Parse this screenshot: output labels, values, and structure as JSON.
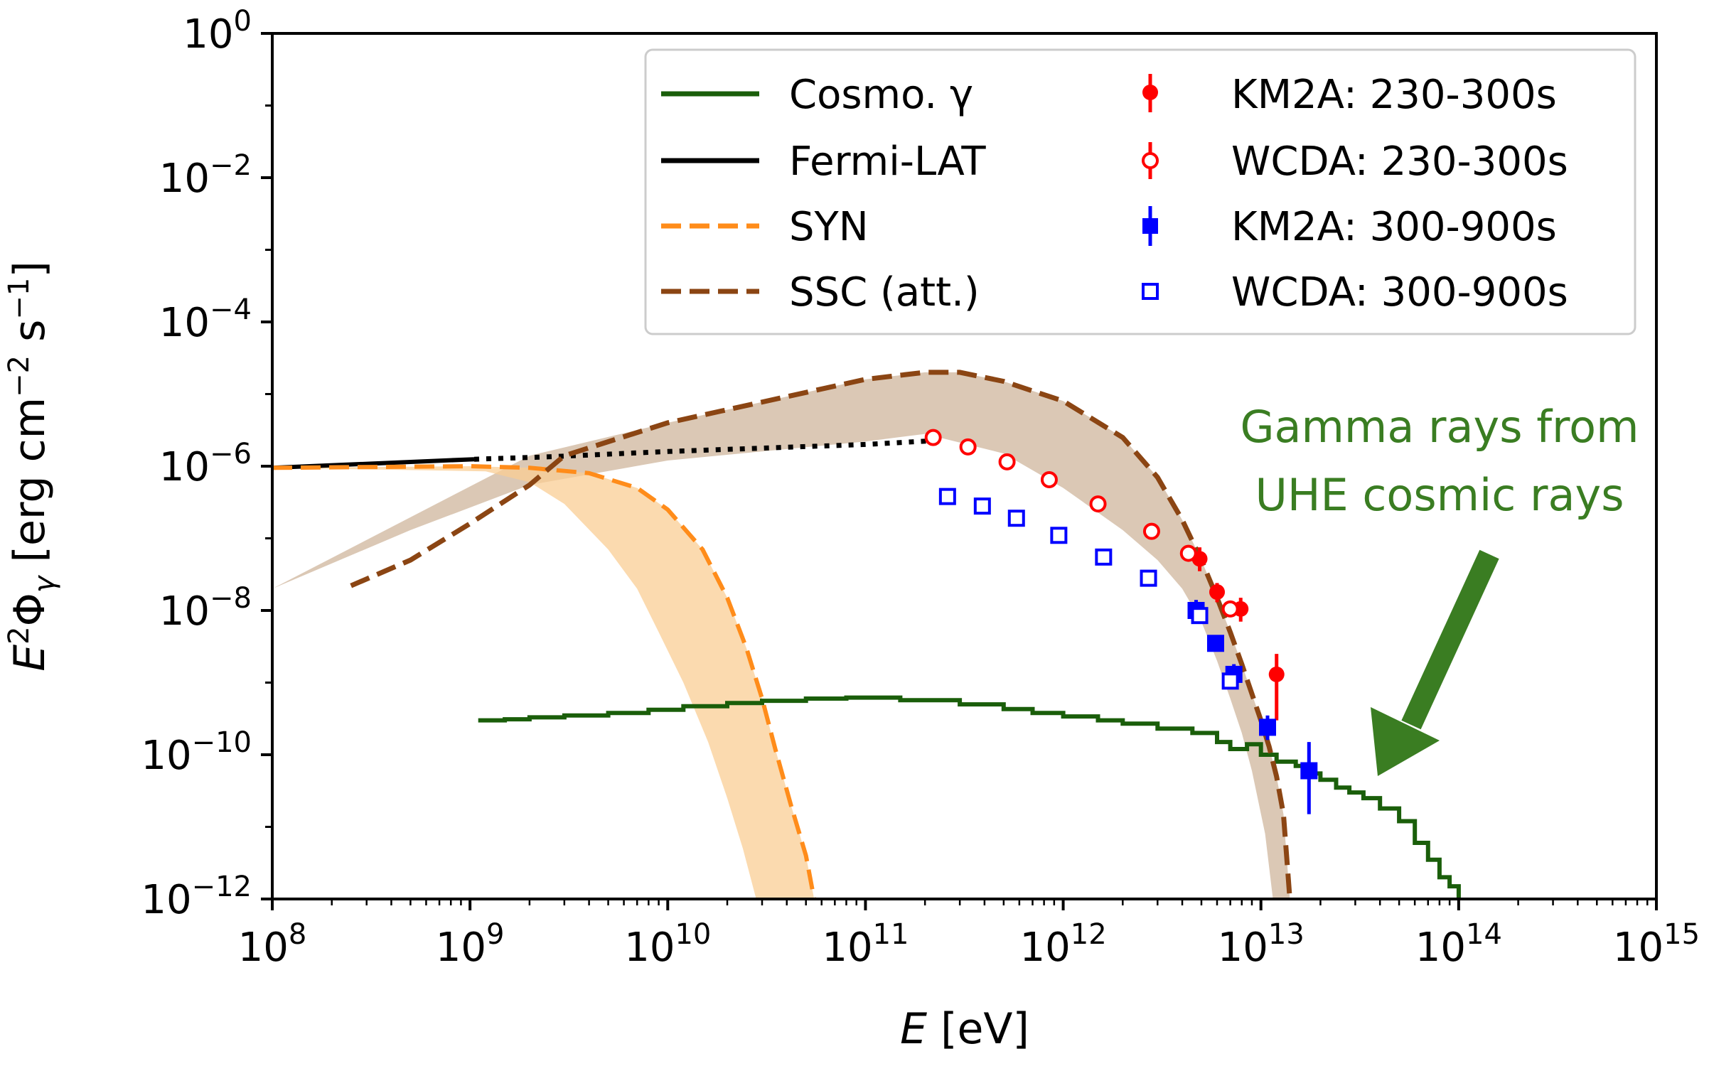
{
  "chart_data": {
    "type": "scatter",
    "x_scale": "log",
    "y_scale": "log",
    "xlim": [
      100000000.0,
      1000000000000000.0
    ],
    "ylim": [
      1e-12,
      1
    ],
    "xlabel": {
      "var": "E",
      "unit": " [eV]"
    },
    "ylabel": {
      "pre": "E",
      "sup": "2",
      "sym": "Φ",
      "sub": "γ",
      "unit": " [erg cm",
      "unit_sup1": "−2",
      "unit_mid": " s",
      "unit_sup2": "−1",
      "unit_end": "]"
    },
    "x_ticks": [
      {
        "base": "10",
        "exp": "8",
        "value": 100000000.0
      },
      {
        "base": "10",
        "exp": "9",
        "value": 1000000000.0
      },
      {
        "base": "10",
        "exp": "10",
        "value": 10000000000.0
      },
      {
        "base": "10",
        "exp": "11",
        "value": 100000000000.0
      },
      {
        "base": "10",
        "exp": "12",
        "value": 1000000000000.0
      },
      {
        "base": "10",
        "exp": "13",
        "value": 10000000000000.0
      },
      {
        "base": "10",
        "exp": "14",
        "value": 100000000000000.0
      },
      {
        "base": "10",
        "exp": "15",
        "value": 1000000000000000.0
      }
    ],
    "y_ticks": [
      {
        "base": "10",
        "exp": "−12",
        "value": 1e-12
      },
      {
        "base": "10",
        "exp": "−10",
        "value": 1e-10
      },
      {
        "base": "10",
        "exp": "−8",
        "value": 1e-08
      },
      {
        "base": "10",
        "exp": "−6",
        "value": 1e-06
      },
      {
        "base": "10",
        "exp": "−4",
        "value": 0.0001
      },
      {
        "base": "10",
        "exp": "−2",
        "value": 0.01
      },
      {
        "base": "10",
        "exp": "0",
        "value": 1
      }
    ],
    "legend": {
      "position": "top-right",
      "entries": [
        {
          "label": "Cosmo. γ",
          "style": "line",
          "color": "#1a5e0a"
        },
        {
          "label": "Fermi-LAT",
          "style": "line",
          "color": "#000000"
        },
        {
          "label": "SYN",
          "style": "dashed",
          "color": "#ff8c1a"
        },
        {
          "label": "SSC (att.)",
          "style": "dashed",
          "color": "#8b4513"
        },
        {
          "label": "KM2A: 230-300s",
          "style": "filled-circle",
          "color": "#ff0000"
        },
        {
          "label": "WCDA: 230-300s",
          "style": "open-circle",
          "color": "#ff0000"
        },
        {
          "label": "KM2A: 300-900s",
          "style": "filled-square",
          "color": "#0000ff"
        },
        {
          "label": "WCDA: 300-900s",
          "style": "open-square",
          "color": "#0000ff"
        }
      ]
    },
    "series": [
      {
        "name": "Fermi-LAT",
        "color": "#000000",
        "solid": [
          [
            100000000.0,
            9.5e-07
          ],
          [
            1050000000.0,
            1.25e-06
          ]
        ],
        "dotted": [
          [
            1050000000.0,
            1.25e-06
          ],
          [
            2500000000.0,
            1.35e-06
          ],
          [
            10000000000.0,
            1.6e-06
          ],
          [
            100000000000.0,
            2e-06
          ],
          [
            250000000000.0,
            2.3e-06
          ]
        ]
      },
      {
        "name": "SYN",
        "color": "#ff8c1a",
        "band_color": "#f9cd94",
        "band_upper": [
          [
            100000000.0,
            9.5e-07
          ],
          [
            1000000000.0,
            1e-06
          ],
          [
            2000000000.0,
            9.5e-07
          ],
          [
            4000000000.0,
            8e-07
          ],
          [
            7000000000.0,
            5e-07
          ],
          [
            10000000000.0,
            2.5e-07
          ],
          [
            15000000000.0,
            7e-08
          ],
          [
            20000000000.0,
            1.5e-08
          ],
          [
            25000000000.0,
            3e-09
          ],
          [
            30000000000.0,
            6e-10
          ],
          [
            35000000000.0,
            1.2e-10
          ],
          [
            42000000000.0,
            2e-11
          ],
          [
            50000000000.0,
            4e-12
          ],
          [
            55000000000.0,
            1e-12
          ]
        ],
        "band_lower": [
          [
            28000000000.0,
            1e-12
          ],
          [
            24000000000.0,
            5e-12
          ],
          [
            20000000000.0,
            2.5e-11
          ],
          [
            16000000000.0,
            1.5e-10
          ],
          [
            12000000000.0,
            1e-09
          ],
          [
            9000000000.0,
            5e-09
          ],
          [
            7000000000.0,
            2e-08
          ],
          [
            5000000000.0,
            7e-08
          ],
          [
            3000000000.0,
            3e-07
          ],
          [
            2000000000.0,
            6e-07
          ],
          [
            1200000000.0,
            8.5e-07
          ],
          [
            100000000.0,
            9.5e-07
          ]
        ],
        "line": [
          [
            100000000.0,
            9.5e-07
          ],
          [
            1000000000.0,
            1e-06
          ],
          [
            2000000000.0,
            9.5e-07
          ],
          [
            4000000000.0,
            8e-07
          ],
          [
            7000000000.0,
            5e-07
          ],
          [
            10000000000.0,
            2.5e-07
          ],
          [
            15000000000.0,
            7e-08
          ],
          [
            20000000000.0,
            1.5e-08
          ],
          [
            25000000000.0,
            3e-09
          ],
          [
            30000000000.0,
            6e-10
          ],
          [
            35000000000.0,
            1.2e-10
          ],
          [
            42000000000.0,
            2e-11
          ],
          [
            50000000000.0,
            4e-12
          ],
          [
            55000000000.0,
            1e-12
          ]
        ]
      },
      {
        "name": "SSC (att.)",
        "color": "#8b4513",
        "band_color": "#d7c2ad",
        "band_upper": [
          [
            2000000000.0,
            1.4e-06
          ],
          [
            10000000000.0,
            4e-06
          ],
          [
            100000000000.0,
            1.6e-05
          ],
          [
            200000000000.0,
            2e-05
          ],
          [
            300000000000.0,
            2e-05
          ],
          [
            500000000000.0,
            1.5e-05
          ],
          [
            1000000000000.0,
            8e-06
          ],
          [
            2000000000000.0,
            2.5e-06
          ],
          [
            3000000000000.0,
            7e-07
          ],
          [
            4000000000000.0,
            1.8e-07
          ],
          [
            5000000000000.0,
            5e-08
          ],
          [
            6000000000000.0,
            1.5e-08
          ],
          [
            7000000000000.0,
            5e-09
          ],
          [
            8000000000000.0,
            1.8e-09
          ],
          [
            9000000000000.0,
            7e-10
          ],
          [
            10000000000000.0,
            3e-10
          ],
          [
            11000000000000.0,
            1.3e-10
          ],
          [
            12000000000000.0,
            5e-11
          ],
          [
            13000000000000.0,
            1.5e-11
          ],
          [
            14000000000000.0,
            1e-12
          ]
        ],
        "band_lower": [
          [
            11500000000000.0,
            1e-12
          ],
          [
            10500000000000.0,
            8e-12
          ],
          [
            9000000000000.0,
            6e-11
          ],
          [
            8000000000000.0,
            2e-10
          ],
          [
            7000000000000.0,
            6e-10
          ],
          [
            6000000000000.0,
            2e-09
          ],
          [
            5000000000000.0,
            7e-09
          ],
          [
            4000000000000.0,
            2e-08
          ],
          [
            3000000000000.0,
            5e-08
          ],
          [
            2000000000000.0,
            1.3e-07
          ],
          [
            1000000000000.0,
            5e-07
          ],
          [
            500000000000.0,
            1.5e-06
          ],
          [
            200000000000.0,
            2.8e-06
          ],
          [
            100000000000.0,
            2.2e-06
          ],
          [
            10000000000.0,
            1.2e-06
          ],
          [
            2000000000.0,
            5.5e-07
          ],
          [
            500000000.0,
            1.3e-07
          ],
          [
            100000000.0,
            2e-08
          ]
        ],
        "line": [
          [
            250000000.0,
            2.2e-08
          ],
          [
            500000000.0,
            5e-08
          ],
          [
            1000000000.0,
            1.6e-07
          ],
          [
            2000000000.0,
            5.5e-07
          ],
          [
            3000000000.0,
            1.4e-06
          ],
          [
            10000000000.0,
            4e-06
          ],
          [
            100000000000.0,
            1.6e-05
          ],
          [
            200000000000.0,
            2e-05
          ],
          [
            300000000000.0,
            2e-05
          ],
          [
            500000000000.0,
            1.5e-05
          ],
          [
            1000000000000.0,
            8e-06
          ],
          [
            2000000000000.0,
            2.5e-06
          ],
          [
            3000000000000.0,
            7e-07
          ],
          [
            4000000000000.0,
            1.8e-07
          ],
          [
            5000000000000.0,
            5e-08
          ],
          [
            6000000000000.0,
            1.5e-08
          ],
          [
            7000000000000.0,
            5e-09
          ],
          [
            8000000000000.0,
            1.8e-09
          ],
          [
            9000000000000.0,
            7e-10
          ],
          [
            10000000000000.0,
            3e-10
          ],
          [
            11000000000000.0,
            1.3e-10
          ],
          [
            12000000000000.0,
            5e-11
          ],
          [
            13000000000000.0,
            1.5e-11
          ],
          [
            14000000000000.0,
            1e-12
          ]
        ]
      },
      {
        "name": "Cosmo. γ",
        "color": "#1a5e0a",
        "step_x": [
          1100000000.0,
          1500000000.0,
          2000000000.0,
          3000000000.0,
          5000000000.0,
          8000000000.0,
          12000000000.0,
          20000000000.0,
          30000000000.0,
          50000000000.0,
          80000000000.0,
          150000000000.0,
          300000000000.0,
          500000000000.0,
          700000000000.0,
          1000000000000.0,
          1500000000000.0,
          2000000000000.0,
          3000000000000.0,
          4500000000000.0,
          6000000000000.0,
          7000000000000.0,
          8500000000000.0,
          10000000000000.0,
          12000000000000.0,
          15000000000000.0,
          18000000000000.0,
          20000000000000.0,
          24000000000000.0,
          28000000000000.0,
          33000000000000.0,
          40000000000000.0,
          50000000000000.0,
          60000000000000.0,
          70000000000000.0,
          80000000000000.0,
          90000000000000.0,
          100000000000000.0
        ],
        "step_y": [
          3e-10,
          3.1e-10,
          3.3e-10,
          3.5e-10,
          3.8e-10,
          4.2e-10,
          4.7e-10,
          5.2e-10,
          5.6e-10,
          6e-10,
          6.2e-10,
          5.7e-10,
          5e-10,
          4.3e-10,
          3.8e-10,
          3.4e-10,
          3e-10,
          2.7e-10,
          2.3e-10,
          2e-10,
          1.5e-10,
          1.2e-10,
          1.4e-10,
          1e-10,
          8e-11,
          7e-11,
          5.5e-11,
          4.5e-11,
          3.5e-11,
          3e-11,
          2.5e-11,
          1.8e-11,
          1.2e-11,
          6e-12,
          3.5e-12,
          2e-12,
          1.5e-12,
          1e-12
        ]
      },
      {
        "name": "KM2A: 230-300s",
        "color": "#ff0000",
        "marker": "filled-circle",
        "points": [
          [
            4900000000000.0,
            5.2e-08,
            7.5e-08,
            3.5e-08
          ],
          [
            6000000000000.0,
            1.8e-08,
            2.4e-08,
            1.3e-08
          ],
          [
            7900000000000.0,
            1.05e-08,
            1.5e-08,
            7e-09
          ],
          [
            12000000000000.0,
            1.3e-09,
            2.5e-09,
            3e-10
          ]
        ]
      },
      {
        "name": "WCDA: 230-300s",
        "color": "#ff0000",
        "marker": "open-circle",
        "points": [
          [
            220000000000.0,
            2.5e-06
          ],
          [
            330000000000.0,
            1.85e-06
          ],
          [
            520000000000.0,
            1.15e-06
          ],
          [
            850000000000.0,
            6.5e-07
          ],
          [
            1500000000000.0,
            3e-07
          ],
          [
            2800000000000.0,
            1.25e-07
          ],
          [
            4300000000000.0,
            6.2e-08
          ],
          [
            7000000000000.0,
            1.05e-08
          ]
        ]
      },
      {
        "name": "KM2A: 300-900s",
        "color": "#0000ff",
        "marker": "filled-square",
        "points": [
          [
            4700000000000.0,
            1e-08,
            1.4e-08,
            7e-09
          ],
          [
            5900000000000.0,
            3.5e-09,
            4.5e-09,
            2.7e-09
          ],
          [
            7300000000000.0,
            1.3e-09,
            1.8e-09,
            9e-10
          ],
          [
            10800000000000.0,
            2.4e-10,
            3.5e-10,
            1.6e-10
          ],
          [
            17500000000000.0,
            6e-11,
            1.5e-10,
            1.5e-11
          ]
        ]
      },
      {
        "name": "WCDA: 300-900s",
        "color": "#0000ff",
        "marker": "open-square",
        "points": [
          [
            260000000000.0,
            3.8e-07
          ],
          [
            390000000000.0,
            2.8e-07
          ],
          [
            580000000000.0,
            1.9e-07
          ],
          [
            950000000000.0,
            1.1e-07
          ],
          [
            1600000000000.0,
            5.5e-08
          ],
          [
            2700000000000.0,
            2.8e-08
          ],
          [
            4900000000000.0,
            8.5e-09
          ],
          [
            7000000000000.0,
            1.05e-09
          ]
        ]
      }
    ],
    "annotation": {
      "line1": "Gamma rays from",
      "line2": "UHE cosmic rays",
      "color": "#3a7d22"
    }
  }
}
